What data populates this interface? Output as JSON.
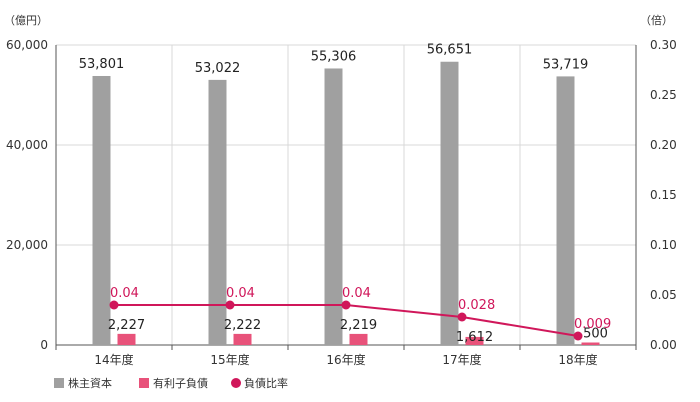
{
  "chart_data": {
    "type": "bar",
    "categories": [
      "14年度",
      "15年度",
      "16年度",
      "17年度",
      "18年度"
    ],
    "series": [
      {
        "name": "株主資本",
        "type": "bar",
        "axis": "left",
        "color": "#a0a0a0",
        "values": [
          53801,
          53022,
          55306,
          56651,
          53719
        ],
        "labels": [
          "53,801",
          "53,022",
          "55,306",
          "56,651",
          "53,719"
        ]
      },
      {
        "name": "有利子負債",
        "type": "bar",
        "axis": "left",
        "color": "#e8527a",
        "values": [
          2227,
          2222,
          2219,
          1612,
          500
        ],
        "labels": [
          "2,227",
          "2,222",
          "2,219",
          "1,612",
          "500"
        ]
      },
      {
        "name": "負債比率",
        "type": "line",
        "axis": "right",
        "color": "#d0175a",
        "values": [
          0.04,
          0.04,
          0.04,
          0.028,
          0.009
        ],
        "labels": [
          "0.04",
          "0.04",
          "0.04",
          "0.028",
          "0.009"
        ]
      }
    ],
    "y_left": {
      "unit": "（億円）",
      "range": [
        0,
        60000
      ],
      "ticks": [
        "0",
        "20,000",
        "40,000",
        "60,000"
      ]
    },
    "y_right": {
      "unit": "（倍）",
      "range": [
        0,
        0.3
      ],
      "ticks": [
        "0.00",
        "0.05",
        "0.10",
        "0.15",
        "0.20",
        "0.25",
        "0.30"
      ]
    },
    "grid": true,
    "legend": "bottom-left"
  }
}
